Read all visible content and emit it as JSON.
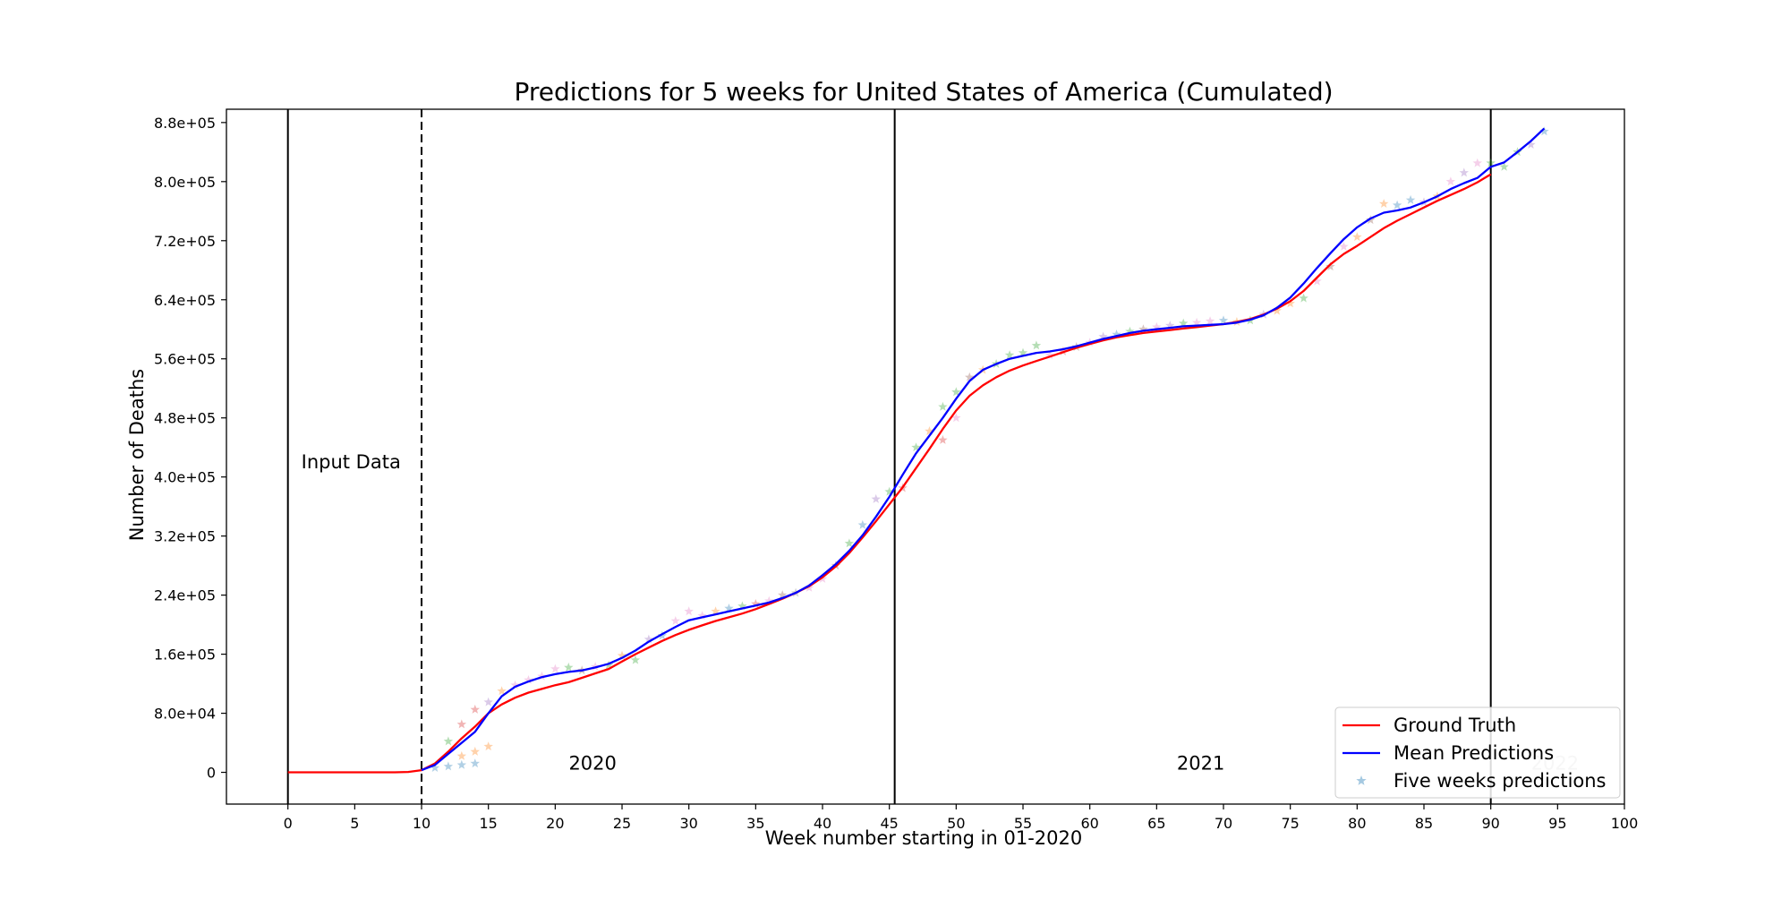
{
  "chart_data": {
    "type": "line",
    "title": "Predictions for 5 weeks for United States of America (Cumulated)",
    "xlabel": "Week number starting in 01-2020",
    "ylabel": "Number of Deaths",
    "xlim": [
      -4.6,
      100
    ],
    "ylim": [
      -43000,
      898000
    ],
    "x_ticks": [
      0,
      5,
      10,
      15,
      20,
      25,
      30,
      35,
      40,
      45,
      50,
      55,
      60,
      65,
      70,
      75,
      80,
      85,
      90,
      95,
      100
    ],
    "x_tick_labels": [
      "0",
      "5",
      "10",
      "15",
      "20",
      "25",
      "30",
      "35",
      "40",
      "45",
      "50",
      "55",
      "60",
      "65",
      "70",
      "75",
      "80",
      "85",
      "90",
      "95",
      "100"
    ],
    "y_ticks": [
      0,
      80000,
      160000,
      240000,
      320000,
      400000,
      480000,
      560000,
      640000,
      720000,
      800000,
      880000
    ],
    "y_tick_labels": [
      "0",
      "8.0e+04",
      "1.6e+05",
      "2.4e+05",
      "3.2e+05",
      "4.0e+05",
      "4.8e+05",
      "5.6e+05",
      "6.4e+05",
      "7.2e+05",
      "8.0e+05",
      "8.8e+05"
    ],
    "grid": false,
    "legend_position": "bottom-right",
    "legend": [
      {
        "label": "Ground Truth",
        "kind": "line",
        "color": "#ff0000"
      },
      {
        "label": "Mean Predictions",
        "kind": "line",
        "color": "#0000ff"
      },
      {
        "label": "Five weeks predictions",
        "kind": "star",
        "color": "#1f77b4"
      }
    ],
    "vertical_lines": [
      {
        "x": 0,
        "style": "solid"
      },
      {
        "x": 10,
        "style": "dashed"
      },
      {
        "x": 45.4,
        "style": "solid"
      },
      {
        "x": 90,
        "style": "solid"
      }
    ],
    "annotations": [
      {
        "text": "Input Data",
        "x": 1,
        "y": 412000,
        "anchor": "start"
      },
      {
        "text": "2020",
        "x": 22.8,
        "y": 3500,
        "anchor": "middle"
      },
      {
        "text": "2021",
        "x": 68.3,
        "y": 3500,
        "anchor": "middle"
      },
      {
        "text": "2022",
        "x": 94.8,
        "y": 3500,
        "anchor": "middle",
        "faded": true
      }
    ],
    "series": [
      {
        "name": "Ground Truth",
        "color": "#ff0000",
        "x": [
          0,
          1,
          2,
          3,
          4,
          5,
          6,
          7,
          8,
          9,
          10,
          11,
          12,
          13,
          14,
          15,
          16,
          17,
          18,
          19,
          20,
          21,
          22,
          23,
          24,
          25,
          26,
          27,
          28,
          29,
          30,
          31,
          32,
          33,
          34,
          35,
          36,
          37,
          38,
          39,
          40,
          41,
          42,
          43,
          44,
          45,
          46,
          47,
          48,
          49,
          50,
          51,
          52,
          53,
          54,
          55,
          56,
          57,
          58,
          59,
          60,
          61,
          62,
          63,
          64,
          65,
          66,
          67,
          68,
          69,
          70,
          71,
          72,
          73,
          74,
          75,
          76,
          77,
          78,
          79,
          80,
          81,
          82,
          83,
          84,
          85,
          86,
          87,
          88,
          89,
          90
        ],
        "values": [
          0,
          0,
          0,
          0,
          0,
          0,
          0,
          0,
          0,
          500,
          3000,
          12000,
          28000,
          46000,
          62000,
          80000,
          92000,
          101000,
          108000,
          113000,
          118000,
          122000,
          128000,
          134000,
          140000,
          150000,
          160000,
          169000,
          178000,
          186000,
          193000,
          199000,
          205000,
          210000,
          215000,
          221000,
          228000,
          235000,
          243000,
          252000,
          264000,
          279000,
          297000,
          318000,
          340000,
          363000,
          386000,
          412000,
          438000,
          465000,
          490000,
          510000,
          524000,
          535000,
          544000,
          551000,
          557000,
          563000,
          569000,
          575000,
          580000,
          585000,
          589000,
          592000,
          595000,
          597000,
          599000,
          601000,
          603000,
          605000,
          607000,
          610000,
          614000,
          620000,
          628000,
          638000,
          652000,
          670000,
          688000,
          702000,
          713000,
          725000,
          737000,
          747000,
          756000,
          765000,
          774000,
          782000,
          790000,
          799000,
          810000
        ]
      },
      {
        "name": "Mean Predictions",
        "color": "#0000ff",
        "x": [
          10,
          11,
          12,
          13,
          14,
          15,
          16,
          17,
          18,
          19,
          20,
          21,
          22,
          23,
          24,
          25,
          26,
          27,
          28,
          29,
          30,
          31,
          32,
          33,
          34,
          35,
          36,
          37,
          38,
          39,
          40,
          41,
          42,
          43,
          44,
          45,
          46,
          47,
          48,
          49,
          50,
          51,
          52,
          53,
          54,
          55,
          56,
          57,
          58,
          59,
          60,
          61,
          62,
          63,
          64,
          65,
          66,
          67,
          68,
          69,
          70,
          71,
          72,
          73,
          74,
          75,
          76,
          77,
          78,
          79,
          80,
          81,
          82,
          83,
          84,
          85,
          86,
          87,
          88,
          89,
          90,
          91,
          92,
          93,
          94
        ],
        "values": [
          3000,
          10000,
          25000,
          40000,
          55000,
          80000,
          103000,
          116000,
          123000,
          129000,
          133000,
          136000,
          138000,
          142000,
          147000,
          155000,
          165000,
          177000,
          187000,
          197000,
          206000,
          210000,
          214000,
          218000,
          222000,
          226000,
          230000,
          236000,
          243000,
          253000,
          267000,
          282000,
          300000,
          321000,
          346000,
          373000,
          403000,
          432000,
          456000,
          480000,
          506000,
          530000,
          545000,
          553000,
          560000,
          564000,
          568000,
          570000,
          573000,
          577000,
          582000,
          587000,
          591000,
          595000,
          598000,
          600000,
          602000,
          604000,
          605000,
          606000,
          607000,
          609000,
          613000,
          619000,
          629000,
          643000,
          662000,
          683000,
          703000,
          722000,
          738000,
          750000,
          758000,
          761000,
          765000,
          772000,
          780000,
          790000,
          798000,
          805000,
          820000,
          826000,
          840000,
          855000,
          872000
        ]
      },
      {
        "name": "Five weeks predictions",
        "kind": "star",
        "points": [
          [
            11,
            6000,
            "#1f77b4"
          ],
          [
            12,
            8000,
            "#1f77b4"
          ],
          [
            13,
            10000,
            "#1f77b4"
          ],
          [
            14,
            12000,
            "#1f77b4"
          ],
          [
            12,
            42000,
            "#2ca02c"
          ],
          [
            13,
            65000,
            "#d62728"
          ],
          [
            14,
            85000,
            "#d62728"
          ],
          [
            14,
            28000,
            "#ff7f0e"
          ],
          [
            15,
            35000,
            "#ff7f0e"
          ],
          [
            13,
            22000,
            "#ff7f0e"
          ],
          [
            15,
            95000,
            "#9467bd"
          ],
          [
            16,
            110000,
            "#ff7f0e"
          ],
          [
            17,
            118000,
            "#e377c2"
          ],
          [
            18,
            125000,
            "#e377c2"
          ],
          [
            19,
            130000,
            "#e377c2"
          ],
          [
            20,
            140000,
            "#e377c2"
          ],
          [
            21,
            142000,
            "#2ca02c"
          ],
          [
            22,
            138000,
            "#8c564b"
          ],
          [
            23,
            143000,
            "#e377c2"
          ],
          [
            24,
            145000,
            "#2ca02c"
          ],
          [
            25,
            158000,
            "#ff7f0e"
          ],
          [
            26,
            152000,
            "#2ca02c"
          ],
          [
            27,
            180000,
            "#9467bd"
          ],
          [
            28,
            185000,
            "#1f77b4"
          ],
          [
            29,
            205000,
            "#e377c2"
          ],
          [
            30,
            218000,
            "#e377c2"
          ],
          [
            31,
            212000,
            "#e377c2"
          ],
          [
            32,
            218000,
            "#ff7f0e"
          ],
          [
            33,
            222000,
            "#1f77b4"
          ],
          [
            34,
            225000,
            "#2ca02c"
          ],
          [
            35,
            228000,
            "#d62728"
          ],
          [
            36,
            232000,
            "#e377c2"
          ],
          [
            37,
            240000,
            "#8c564b"
          ],
          [
            38,
            243000,
            "#7f7f7f"
          ],
          [
            39,
            250000,
            "#e377c2"
          ],
          [
            40,
            262000,
            "#e377c2"
          ],
          [
            41,
            280000,
            "#8c564b"
          ],
          [
            42,
            310000,
            "#2ca02c"
          ],
          [
            43,
            335000,
            "#1f77b4"
          ],
          [
            44,
            370000,
            "#9467bd"
          ],
          [
            45,
            380000,
            "#2ca02c"
          ],
          [
            46,
            385000,
            "#d62728"
          ],
          [
            47,
            440000,
            "#2ca02c"
          ],
          [
            48,
            462000,
            "#ff7f0e"
          ],
          [
            49,
            495000,
            "#2ca02c"
          ],
          [
            49,
            450000,
            "#d62728"
          ],
          [
            50,
            480000,
            "#e377c2"
          ],
          [
            50,
            515000,
            "#2ca02c"
          ],
          [
            51,
            535000,
            "#8c564b"
          ],
          [
            52,
            545000,
            "#ff7f0e"
          ],
          [
            53,
            553000,
            "#2ca02c"
          ],
          [
            54,
            565000,
            "#2ca02c"
          ],
          [
            55,
            568000,
            "#2ca02c"
          ],
          [
            56,
            578000,
            "#2ca02c"
          ],
          [
            57,
            565000,
            "#e377c2"
          ],
          [
            58,
            570000,
            "#d62728"
          ],
          [
            59,
            576000,
            "#8c564b"
          ],
          [
            60,
            582000,
            "#e377c2"
          ],
          [
            61,
            590000,
            "#9467bd"
          ],
          [
            62,
            593000,
            "#1f77b4"
          ],
          [
            63,
            597000,
            "#2ca02c"
          ],
          [
            64,
            600000,
            "#8c564b"
          ],
          [
            65,
            603000,
            "#e377c2"
          ],
          [
            66,
            605000,
            "#9467bd"
          ],
          [
            67,
            608000,
            "#2ca02c"
          ],
          [
            68,
            609000,
            "#e377c2"
          ],
          [
            69,
            611000,
            "#e377c2"
          ],
          [
            70,
            612000,
            "#1f77b4"
          ],
          [
            71,
            610000,
            "#ff7f0e"
          ],
          [
            72,
            612000,
            "#2ca02c"
          ],
          [
            73,
            620000,
            "#9467bd"
          ],
          [
            74,
            625000,
            "#ff7f0e"
          ],
          [
            75,
            635000,
            "#ff7f0e"
          ],
          [
            76,
            642000,
            "#2ca02c"
          ],
          [
            77,
            665000,
            "#e377c2"
          ],
          [
            78,
            685000,
            "#8c564b"
          ],
          [
            79,
            712000,
            "#e377c2"
          ],
          [
            80,
            725000,
            "#ff7f0e"
          ],
          [
            81,
            748000,
            "#8c564b"
          ],
          [
            82,
            770000,
            "#ff7f0e"
          ],
          [
            83,
            768000,
            "#1f77b4"
          ],
          [
            84,
            775000,
            "#1f77b4"
          ],
          [
            85,
            772000,
            "#9467bd"
          ],
          [
            86,
            780000,
            "#ff7f0e"
          ],
          [
            87,
            800000,
            "#e377c2"
          ],
          [
            88,
            812000,
            "#9467bd"
          ],
          [
            89,
            825000,
            "#e377c2"
          ],
          [
            90,
            825000,
            "#2ca02c"
          ],
          [
            91,
            820000,
            "#2ca02c"
          ],
          [
            92,
            840000,
            "#2ca02c"
          ],
          [
            93,
            850000,
            "#9467bd"
          ],
          [
            94,
            868000,
            "#1f77b4"
          ]
        ]
      }
    ]
  }
}
